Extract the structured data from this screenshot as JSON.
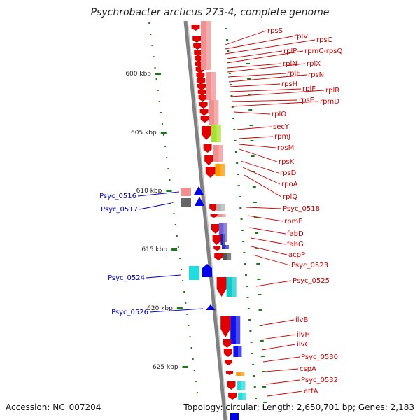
{
  "title": "Psychrobacter arcticus 273-4, complete genome",
  "accession": "Accession: NC_007204",
  "summary": "Topology: circular; Length: 2,650,701 bp; Genes: 2,183",
  "colors": {
    "red_gene": "#e00000",
    "pink_gene": "#f09090",
    "label_red": "#cc0000",
    "label_blue": "#0000bb",
    "tick_green": "#1a7a1a",
    "backbone": "#808080"
  },
  "scale_ticks": [
    "600 kbp",
    "605 kbp",
    "610 kbp",
    "615 kbp",
    "620 kbp",
    "625 kbp"
  ],
  "right_genes": [
    "rpsS",
    "rplV",
    "rpsC",
    "rplP",
    "rpmC-rpsQ",
    "rplN",
    "rplX",
    "rplE",
    "rpsN",
    "rpsH",
    "rplF",
    "rplR",
    "rpsE",
    "rpmD",
    "rplO",
    "secY",
    "rpmJ",
    "rpsM",
    "rpsK",
    "rpsD",
    "rpoA",
    "rplQ",
    "Psyc_0518",
    "rpmF",
    "fabD",
    "fabG",
    "acpP",
    "Psyc_0523",
    "Psyc_0525",
    "ilvB",
    "ilvH",
    "ilvC",
    "Psyc_0530",
    "cspA",
    "Psyc_0532",
    "etfA"
  ],
  "left_genes": [
    "Psyc_0516",
    "Psyc_0517",
    "Psyc_0524",
    "Psyc_0526"
  ]
}
